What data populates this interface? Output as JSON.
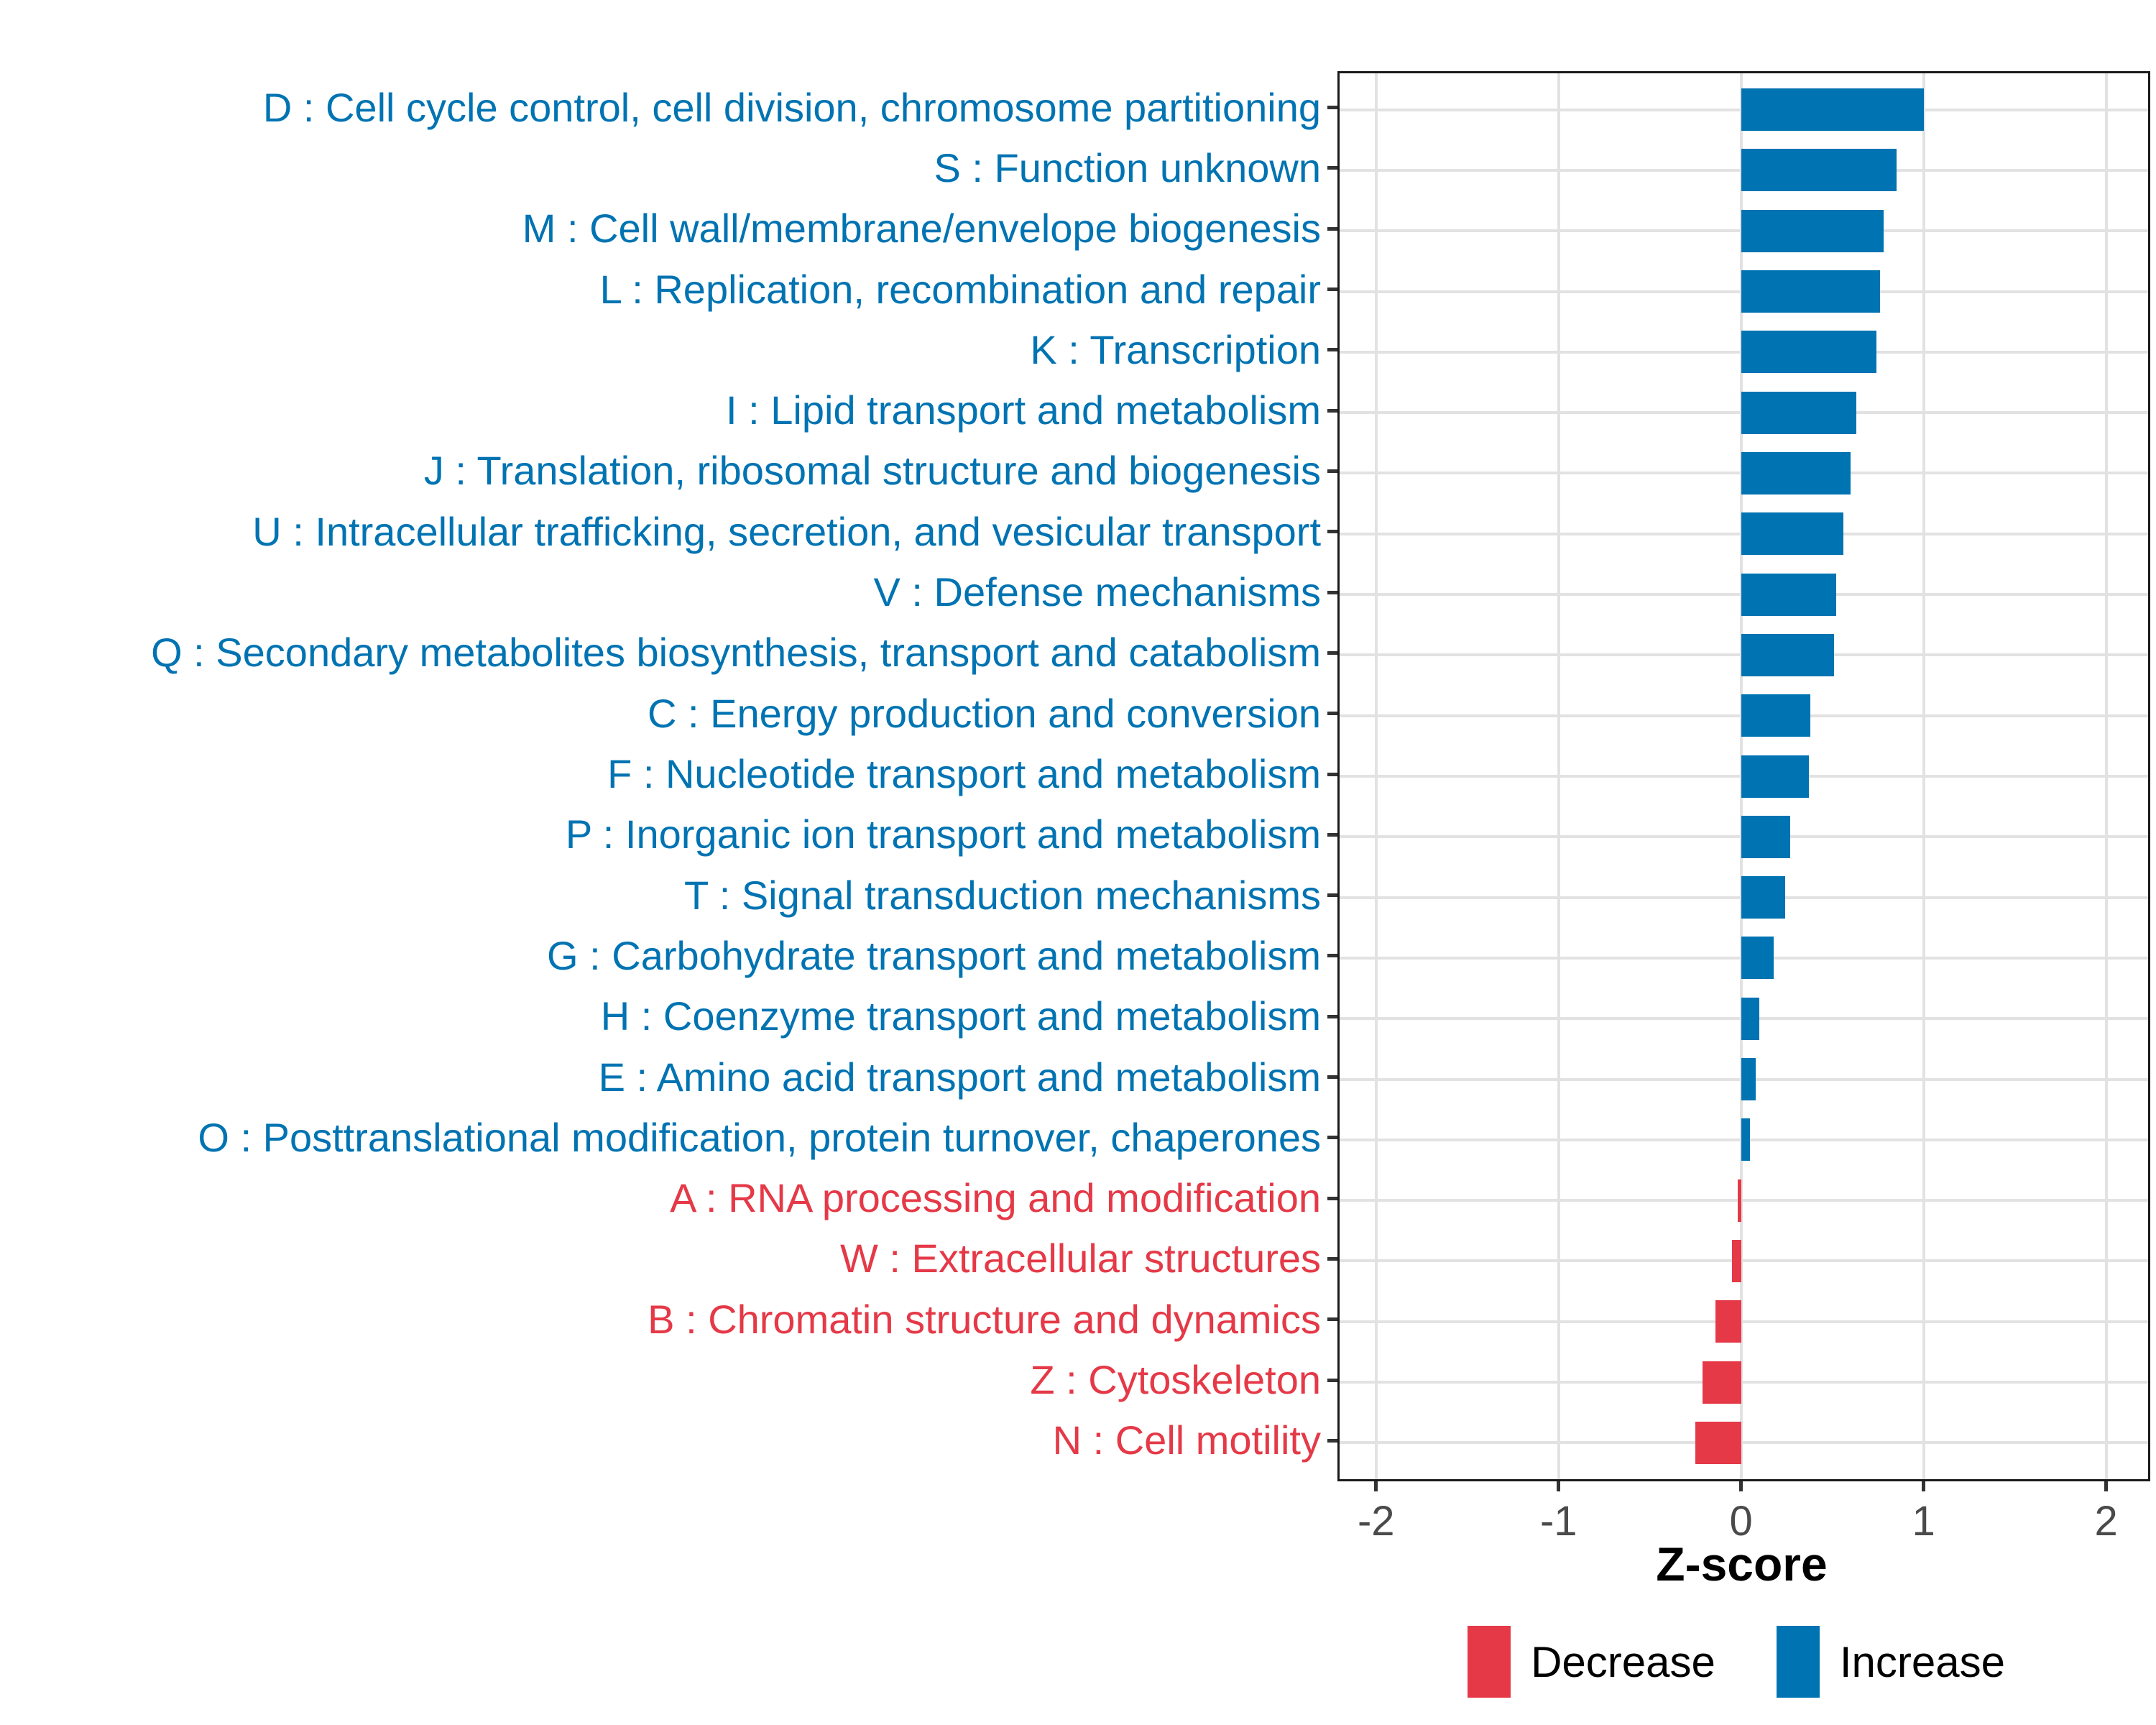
{
  "chart_data": {
    "type": "bar",
    "orientation": "horizontal",
    "title": "",
    "xlabel": "Z-score",
    "x_ticks": [
      -2,
      -1,
      0,
      1,
      2
    ],
    "xlim": [
      -2.2,
      2.23
    ],
    "grid": true,
    "legend_position": "bottom-right",
    "colors": {
      "increase": "#0073B2",
      "decrease": "#E53947",
      "gridline": "#E2E2E2",
      "axis_text": "#4A4A4A",
      "panel_border": "#1A1A1A"
    },
    "legend": [
      {
        "label": "Decrease",
        "group": "decrease"
      },
      {
        "label": "Increase",
        "group": "increase"
      }
    ],
    "bars": [
      {
        "label": "D : Cell cycle control, cell division, chromosome partitioning",
        "value": 1.0,
        "group": "increase"
      },
      {
        "label": "S : Function unknown",
        "value": 0.85,
        "group": "increase"
      },
      {
        "label": "M : Cell wall/membrane/envelope biogenesis",
        "value": 0.78,
        "group": "increase"
      },
      {
        "label": "L : Replication, recombination and repair",
        "value": 0.76,
        "group": "increase"
      },
      {
        "label": "K : Transcription",
        "value": 0.74,
        "group": "increase"
      },
      {
        "label": "I : Lipid transport and metabolism",
        "value": 0.63,
        "group": "increase"
      },
      {
        "label": "J : Translation, ribosomal structure and biogenesis",
        "value": 0.6,
        "group": "increase"
      },
      {
        "label": "U : Intracellular trafficking, secretion, and vesicular transport",
        "value": 0.56,
        "group": "increase"
      },
      {
        "label": "V : Defense mechanisms",
        "value": 0.52,
        "group": "increase"
      },
      {
        "label": "Q : Secondary metabolites biosynthesis, transport and catabolism",
        "value": 0.51,
        "group": "increase"
      },
      {
        "label": "C : Energy production and conversion",
        "value": 0.38,
        "group": "increase"
      },
      {
        "label": "F : Nucleotide transport and metabolism",
        "value": 0.37,
        "group": "increase"
      },
      {
        "label": "P : Inorganic ion transport and metabolism",
        "value": 0.27,
        "group": "increase"
      },
      {
        "label": "T : Signal transduction mechanisms",
        "value": 0.24,
        "group": "increase"
      },
      {
        "label": "G : Carbohydrate transport and metabolism",
        "value": 0.18,
        "group": "increase"
      },
      {
        "label": "H : Coenzyme transport and metabolism",
        "value": 0.1,
        "group": "increase"
      },
      {
        "label": "E : Amino acid transport and metabolism",
        "value": 0.08,
        "group": "increase"
      },
      {
        "label": "O : Posttranslational modification, protein turnover, chaperones",
        "value": 0.05,
        "group": "increase"
      },
      {
        "label": "A : RNA processing and modification",
        "value": -0.02,
        "group": "decrease"
      },
      {
        "label": "W : Extracellular structures",
        "value": -0.05,
        "group": "decrease"
      },
      {
        "label": "B : Chromatin structure and dynamics",
        "value": -0.14,
        "group": "decrease"
      },
      {
        "label": "Z : Cytoskeleton",
        "value": -0.21,
        "group": "decrease"
      },
      {
        "label": "N : Cell motility",
        "value": -0.25,
        "group": "decrease"
      }
    ]
  }
}
